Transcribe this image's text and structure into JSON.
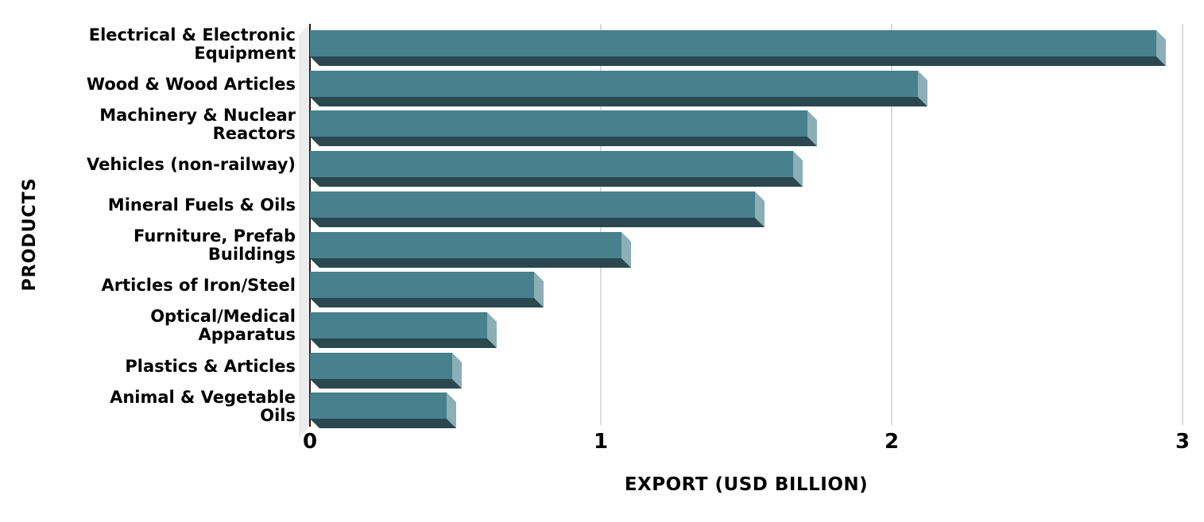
{
  "chart_data": {
    "type": "bar",
    "orientation": "horizontal",
    "title": "",
    "xlabel": "EXPORT (USD BILLION)",
    "ylabel": "PRODUCTS",
    "xlim": [
      0,
      3
    ],
    "xticks": [
      "0",
      "1",
      "2",
      "3"
    ],
    "grid": true,
    "legend": false,
    "categories": [
      "Electrical & Electronic Equipment",
      "Wood & Wood Articles",
      "Machinery & Nuclear Reactors",
      "Vehicles (non-railway)",
      "Mineral Fuels & Oils",
      "Furniture, Prefab Buildings",
      "Articles of Iron/Steel",
      "Optical/Medical Apparatus",
      "Plastics & Articles",
      "Animal & Vegetable Oils"
    ],
    "category_lines": [
      [
        "Electrical & Electronic",
        "Equipment"
      ],
      [
        "Wood & Wood Articles"
      ],
      [
        "Machinery & Nuclear",
        "Reactors"
      ],
      [
        "Vehicles (non-railway)"
      ],
      [
        "Mineral Fuels & Oils"
      ],
      [
        "Furniture, Prefab",
        "Buildings"
      ],
      [
        "Articles of Iron/Steel"
      ],
      [
        "Optical/Medical",
        "Apparatus"
      ],
      [
        "Plastics & Articles"
      ],
      [
        "Animal & Vegetable",
        "Oils"
      ]
    ],
    "values": [
      2.91,
      2.09,
      1.71,
      1.66,
      1.53,
      1.07,
      0.77,
      0.61,
      0.49,
      0.47
    ],
    "colors": {
      "bar_face": "#47818D",
      "bar_side": "#8CAFB7",
      "bar_bottom": "#2B4850",
      "wall": "#ECECEC",
      "gridline": "#DBDBDB",
      "axis_line": "#1C1C1C",
      "text": "#000000",
      "background": "#FFFFFF"
    }
  }
}
